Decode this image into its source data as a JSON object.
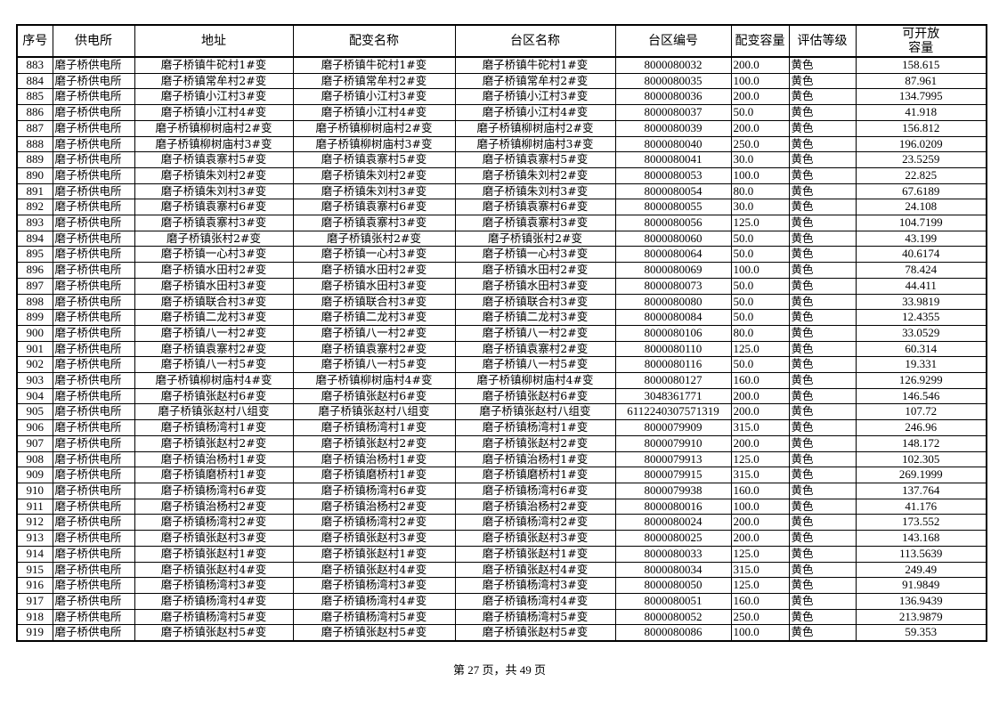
{
  "headers": [
    "序号",
    "供电所",
    "地址",
    "配变名称",
    "台区名称",
    "台区编号",
    "配变容量",
    "评估等级",
    "可开放\n容量"
  ],
  "rows": [
    [
      "883",
      "磨子桥供电所",
      "磨子桥镇牛砣村1#变",
      "磨子桥镇牛砣村1#变",
      "磨子桥镇牛砣村1#变",
      "8000080032",
      "200.0",
      "黄色",
      "158.615"
    ],
    [
      "884",
      "磨子桥供电所",
      "磨子桥镇常牟村2#变",
      "磨子桥镇常牟村2#变",
      "磨子桥镇常牟村2#变",
      "8000080035",
      "100.0",
      "黄色",
      "87.961"
    ],
    [
      "885",
      "磨子桥供电所",
      "磨子桥镇小江村3#变",
      "磨子桥镇小江村3#变",
      "磨子桥镇小江村3#变",
      "8000080036",
      "200.0",
      "黄色",
      "134.7995"
    ],
    [
      "886",
      "磨子桥供电所",
      "磨子桥镇小江村4#变",
      "磨子桥镇小江村4#变",
      "磨子桥镇小江村4#变",
      "8000080037",
      "50.0",
      "黄色",
      "41.918"
    ],
    [
      "887",
      "磨子桥供电所",
      "磨子桥镇柳树庙村2#变",
      "磨子桥镇柳树庙村2#变",
      "磨子桥镇柳树庙村2#变",
      "8000080039",
      "200.0",
      "黄色",
      "156.812"
    ],
    [
      "888",
      "磨子桥供电所",
      "磨子桥镇柳树庙村3#变",
      "磨子桥镇柳树庙村3#变",
      "磨子桥镇柳树庙村3#变",
      "8000080040",
      "250.0",
      "黄色",
      "196.0209"
    ],
    [
      "889",
      "磨子桥供电所",
      "磨子桥镇袁寨村5#变",
      "磨子桥镇袁寨村5#变",
      "磨子桥镇袁寨村5#变",
      "8000080041",
      "30.0",
      "黄色",
      "23.5259"
    ],
    [
      "890",
      "磨子桥供电所",
      "磨子桥镇朱刘村2#变",
      "磨子桥镇朱刘村2#变",
      "磨子桥镇朱刘村2#变",
      "8000080053",
      "100.0",
      "黄色",
      "22.825"
    ],
    [
      "891",
      "磨子桥供电所",
      "磨子桥镇朱刘村3#变",
      "磨子桥镇朱刘村3#变",
      "磨子桥镇朱刘村3#变",
      "8000080054",
      "80.0",
      "黄色",
      "67.6189"
    ],
    [
      "892",
      "磨子桥供电所",
      "磨子桥镇袁寨村6#变",
      "磨子桥镇袁寨村6#变",
      "磨子桥镇袁寨村6#变",
      "8000080055",
      "30.0",
      "黄色",
      "24.108"
    ],
    [
      "893",
      "磨子桥供电所",
      "磨子桥镇袁寨村3#变",
      "磨子桥镇袁寨村3#变",
      "磨子桥镇袁寨村3#变",
      "8000080056",
      "125.0",
      "黄色",
      "104.7199"
    ],
    [
      "894",
      "磨子桥供电所",
      "磨子桥镇张村2#变",
      "磨子桥镇张村2#变",
      "磨子桥镇张村2#变",
      "8000080060",
      "50.0",
      "黄色",
      "43.199"
    ],
    [
      "895",
      "磨子桥供电所",
      "磨子桥镇一心村3#变",
      "磨子桥镇一心村3#变",
      "磨子桥镇一心村3#变",
      "8000080064",
      "50.0",
      "黄色",
      "40.6174"
    ],
    [
      "896",
      "磨子桥供电所",
      "磨子桥镇水田村2#变",
      "磨子桥镇水田村2#变",
      "磨子桥镇水田村2#变",
      "8000080069",
      "100.0",
      "黄色",
      "78.424"
    ],
    [
      "897",
      "磨子桥供电所",
      "磨子桥镇水田村3#变",
      "磨子桥镇水田村3#变",
      "磨子桥镇水田村3#变",
      "8000080073",
      "50.0",
      "黄色",
      "44.411"
    ],
    [
      "898",
      "磨子桥供电所",
      "磨子桥镇联合村3#变",
      "磨子桥镇联合村3#变",
      "磨子桥镇联合村3#变",
      "8000080080",
      "50.0",
      "黄色",
      "33.9819"
    ],
    [
      "899",
      "磨子桥供电所",
      "磨子桥镇二龙村3#变",
      "磨子桥镇二龙村3#变",
      "磨子桥镇二龙村3#变",
      "8000080084",
      "50.0",
      "黄色",
      "12.4355"
    ],
    [
      "900",
      "磨子桥供电所",
      "磨子桥镇八一村2#变",
      "磨子桥镇八一村2#变",
      "磨子桥镇八一村2#变",
      "8000080106",
      "80.0",
      "黄色",
      "33.0529"
    ],
    [
      "901",
      "磨子桥供电所",
      "磨子桥镇袁寨村2#变",
      "磨子桥镇袁寨村2#变",
      "磨子桥镇袁寨村2#变",
      "8000080110",
      "125.0",
      "黄色",
      "60.314"
    ],
    [
      "902",
      "磨子桥供电所",
      "磨子桥镇八一村5#变",
      "磨子桥镇八一村5#变",
      "磨子桥镇八一村5#变",
      "8000080116",
      "50.0",
      "黄色",
      "19.331"
    ],
    [
      "903",
      "磨子桥供电所",
      "磨子桥镇柳树庙村4#变",
      "磨子桥镇柳树庙村4#变",
      "磨子桥镇柳树庙村4#变",
      "8000080127",
      "160.0",
      "黄色",
      "126.9299"
    ],
    [
      "904",
      "磨子桥供电所",
      "磨子桥镇张赵村6#变",
      "磨子桥镇张赵村6#变",
      "磨子桥镇张赵村6#变",
      "3048361771",
      "200.0",
      "黄色",
      "146.546"
    ],
    [
      "905",
      "磨子桥供电所",
      "磨子桥镇张赵村八组变",
      "磨子桥镇张赵村八组变",
      "磨子桥镇张赵村八组变",
      "6112240307571319",
      "200.0",
      "黄色",
      "107.72"
    ],
    [
      "906",
      "磨子桥供电所",
      "磨子桥镇杨湾村1#变",
      "磨子桥镇杨湾村1#变",
      "磨子桥镇杨湾村1#变",
      "8000079909",
      "315.0",
      "黄色",
      "246.96"
    ],
    [
      "907",
      "磨子桥供电所",
      "磨子桥镇张赵村2#变",
      "磨子桥镇张赵村2#变",
      "磨子桥镇张赵村2#变",
      "8000079910",
      "200.0",
      "黄色",
      "148.172"
    ],
    [
      "908",
      "磨子桥供电所",
      "磨子桥镇治杨村1#变",
      "磨子桥镇治杨村1#变",
      "磨子桥镇治杨村1#变",
      "8000079913",
      "125.0",
      "黄色",
      "102.305"
    ],
    [
      "909",
      "磨子桥供电所",
      "磨子桥镇磨桥村1#变",
      "磨子桥镇磨桥村1#变",
      "磨子桥镇磨桥村1#变",
      "8000079915",
      "315.0",
      "黄色",
      "269.1999"
    ],
    [
      "910",
      "磨子桥供电所",
      "磨子桥镇杨湾村6#变",
      "磨子桥镇杨湾村6#变",
      "磨子桥镇杨湾村6#变",
      "8000079938",
      "160.0",
      "黄色",
      "137.764"
    ],
    [
      "911",
      "磨子桥供电所",
      "磨子桥镇治杨村2#变",
      "磨子桥镇治杨村2#变",
      "磨子桥镇治杨村2#变",
      "8000080016",
      "100.0",
      "黄色",
      "41.176"
    ],
    [
      "912",
      "磨子桥供电所",
      "磨子桥镇杨湾村2#变",
      "磨子桥镇杨湾村2#变",
      "磨子桥镇杨湾村2#变",
      "8000080024",
      "200.0",
      "黄色",
      "173.552"
    ],
    [
      "913",
      "磨子桥供电所",
      "磨子桥镇张赵村3#变",
      "磨子桥镇张赵村3#变",
      "磨子桥镇张赵村3#变",
      "8000080025",
      "200.0",
      "黄色",
      "143.168"
    ],
    [
      "914",
      "磨子桥供电所",
      "磨子桥镇张赵村1#变",
      "磨子桥镇张赵村1#变",
      "磨子桥镇张赵村1#变",
      "8000080033",
      "125.0",
      "黄色",
      "113.5639"
    ],
    [
      "915",
      "磨子桥供电所",
      "磨子桥镇张赵村4#变",
      "磨子桥镇张赵村4#变",
      "磨子桥镇张赵村4#变",
      "8000080034",
      "315.0",
      "黄色",
      "249.49"
    ],
    [
      "916",
      "磨子桥供电所",
      "磨子桥镇杨湾村3#变",
      "磨子桥镇杨湾村3#变",
      "磨子桥镇杨湾村3#变",
      "8000080050",
      "125.0",
      "黄色",
      "91.9849"
    ],
    [
      "917",
      "磨子桥供电所",
      "磨子桥镇杨湾村4#变",
      "磨子桥镇杨湾村4#变",
      "磨子桥镇杨湾村4#变",
      "8000080051",
      "160.0",
      "黄色",
      "136.9439"
    ],
    [
      "918",
      "磨子桥供电所",
      "磨子桥镇杨湾村5#变",
      "磨子桥镇杨湾村5#变",
      "磨子桥镇杨湾村5#变",
      "8000080052",
      "250.0",
      "黄色",
      "213.9879"
    ],
    [
      "919",
      "磨子桥供电所",
      "磨子桥镇张赵村5#变",
      "磨子桥镇张赵村5#变",
      "磨子桥镇张赵村5#变",
      "8000080086",
      "100.0",
      "黄色",
      "59.353"
    ]
  ],
  "footer": "第 27 页，共 49 页"
}
